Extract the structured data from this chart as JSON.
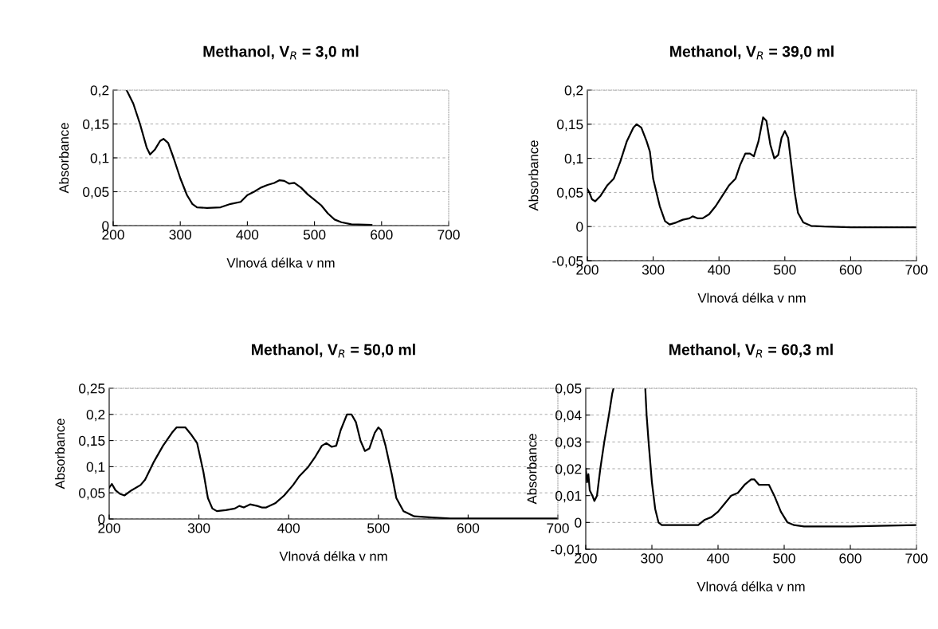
{
  "chart_data": [
    {
      "type": "line",
      "title": "Methanol, V$_{R}$ = 3,0 ml",
      "xlabel": "Vlnová délka v nm",
      "ylabel": "Absorbance",
      "grid": "y",
      "xlim": [
        200,
        700
      ],
      "xticks": [
        200,
        300,
        400,
        500,
        600,
        700
      ],
      "ylim": [
        0,
        0.2
      ],
      "yticks": [
        0,
        {
          "value": 0.05,
          "label": "0,05"
        },
        {
          "value": 0.1,
          "label": "0,1"
        },
        {
          "value": 0.15,
          "label": "0,15"
        },
        {
          "value": 0.2,
          "label": "0,2"
        }
      ],
      "series": [
        {
          "color": "#000000",
          "x": [
            220,
            230,
            240,
            250,
            255,
            262,
            270,
            275,
            282,
            290,
            300,
            310,
            318,
            325,
            340,
            360,
            375,
            390,
            400,
            410,
            420,
            430,
            440,
            448,
            455,
            462,
            470,
            480,
            490,
            500,
            510,
            520,
            530,
            540,
            555,
            585
          ],
          "values": [
            0.2,
            0.18,
            0.15,
            0.115,
            0.105,
            0.112,
            0.125,
            0.128,
            0.122,
            0.1,
            0.07,
            0.045,
            0.032,
            0.027,
            0.026,
            0.027,
            0.032,
            0.035,
            0.045,
            0.05,
            0.056,
            0.06,
            0.063,
            0.067,
            0.066,
            0.062,
            0.063,
            0.056,
            0.046,
            0.038,
            0.03,
            0.018,
            0.009,
            0.005,
            0.002,
            0.001
          ]
        }
      ]
    },
    {
      "type": "line",
      "title": "Methanol, V$_{R}$ = 39,0 ml",
      "xlabel": "Vlnová délka v nm",
      "ylabel": "Absorbance",
      "grid": "y",
      "xlim": [
        200,
        700
      ],
      "xticks": [
        200,
        300,
        400,
        500,
        600,
        700
      ],
      "ylim": [
        -0.05,
        0.2
      ],
      "yticks": [
        {
          "value": -0.05,
          "label": "-0,05"
        },
        0,
        {
          "value": 0.05,
          "label": "0,05"
        },
        {
          "value": 0.1,
          "label": "0,1"
        },
        {
          "value": 0.15,
          "label": "0,15"
        },
        {
          "value": 0.2,
          "label": "0,2"
        }
      ],
      "series": [
        {
          "color": "#000000",
          "x": [
            200,
            203,
            207,
            212,
            220,
            230,
            240,
            250,
            260,
            270,
            275,
            282,
            290,
            295,
            300,
            310,
            318,
            325,
            335,
            345,
            355,
            360,
            368,
            375,
            385,
            395,
            405,
            415,
            425,
            432,
            440,
            447,
            453,
            460,
            467,
            472,
            478,
            484,
            490,
            495,
            500,
            505,
            510,
            515,
            520,
            528,
            540,
            560,
            600,
            700
          ],
          "values": [
            0.055,
            0.05,
            0.04,
            0.037,
            0.045,
            0.06,
            0.07,
            0.095,
            0.125,
            0.145,
            0.15,
            0.145,
            0.125,
            0.11,
            0.07,
            0.03,
            0.008,
            0.003,
            0.006,
            0.01,
            0.012,
            0.015,
            0.012,
            0.012,
            0.018,
            0.03,
            0.045,
            0.06,
            0.07,
            0.09,
            0.107,
            0.107,
            0.103,
            0.125,
            0.16,
            0.155,
            0.12,
            0.1,
            0.105,
            0.13,
            0.14,
            0.13,
            0.09,
            0.05,
            0.02,
            0.006,
            0.001,
            0,
            -0.001,
            -0.001
          ]
        }
      ]
    },
    {
      "type": "line",
      "title": "Methanol, V$_{R}$ = 50,0 ml",
      "xlabel": "Vlnová délka v nm",
      "ylabel": "Absorbance",
      "grid": "y",
      "xlim": [
        200,
        700
      ],
      "xticks": [
        200,
        300,
        400,
        500,
        600,
        700
      ],
      "ylim": [
        0,
        0.25
      ],
      "yticks": [
        0,
        {
          "value": 0.05,
          "label": "0,05"
        },
        {
          "value": 0.1,
          "label": "0,1"
        },
        {
          "value": 0.15,
          "label": "0,15"
        },
        {
          "value": 0.2,
          "label": "0,2"
        },
        {
          "value": 0.25,
          "label": "0,25"
        }
      ],
      "series": [
        {
          "color": "#000000",
          "x": [
            200,
            203,
            207,
            212,
            217,
            225,
            235,
            240,
            250,
            260,
            270,
            275,
            285,
            292,
            298,
            305,
            310,
            315,
            320,
            330,
            340,
            345,
            350,
            357,
            365,
            370,
            375,
            385,
            395,
            405,
            412,
            422,
            430,
            437,
            442,
            448,
            453,
            458,
            465,
            470,
            475,
            480,
            485,
            490,
            496,
            500,
            503,
            508,
            515,
            520,
            528,
            540,
            560,
            580,
            700
          ],
          "values": [
            0.06,
            0.067,
            0.055,
            0.048,
            0.045,
            0.055,
            0.065,
            0.075,
            0.11,
            0.14,
            0.165,
            0.175,
            0.175,
            0.16,
            0.145,
            0.09,
            0.04,
            0.02,
            0.015,
            0.017,
            0.02,
            0.025,
            0.022,
            0.028,
            0.025,
            0.022,
            0.022,
            0.03,
            0.045,
            0.065,
            0.082,
            0.1,
            0.12,
            0.14,
            0.145,
            0.138,
            0.14,
            0.17,
            0.2,
            0.2,
            0.185,
            0.15,
            0.13,
            0.135,
            0.165,
            0.175,
            0.17,
            0.14,
            0.085,
            0.04,
            0.015,
            0.005,
            0.003,
            0.001,
            0.001
          ]
        }
      ]
    },
    {
      "type": "line",
      "title": "Methanol, V$_{R}$ = 60,3 ml",
      "xlabel": "Vlnová délka v nm",
      "ylabel": "Absorbance",
      "grid": "y",
      "xlim": [
        200,
        700
      ],
      "xticks": [
        200,
        300,
        400,
        500,
        600,
        700
      ],
      "ylim": [
        -0.01,
        0.05
      ],
      "yticks": [
        {
          "value": -0.01,
          "label": "-0,01"
        },
        0,
        {
          "value": 0.01,
          "label": "0,01"
        },
        {
          "value": 0.02,
          "label": "0,02"
        },
        {
          "value": 0.03,
          "label": "0,03"
        },
        {
          "value": 0.04,
          "label": "0,04"
        },
        {
          "value": 0.05,
          "label": "0,05"
        }
      ],
      "series": [
        {
          "color": "#000000",
          "x": [
            200,
            202,
            204,
            206,
            210,
            213,
            217,
            222,
            228,
            235,
            240,
            242,
            265,
            290,
            292,
            295,
            300,
            305,
            310,
            315,
            330,
            350,
            370,
            380,
            390,
            400,
            410,
            420,
            430,
            440,
            450,
            455,
            462,
            470,
            477,
            485,
            495,
            505,
            515,
            530,
            600,
            700
          ],
          "values": [
            0.02,
            0.015,
            0.018,
            0.012,
            0.01,
            0.008,
            0.01,
            0.02,
            0.03,
            0.04,
            0.048,
            0.05,
            null,
            0.05,
            0.04,
            0.03,
            0.015,
            0.005,
            0.0,
            -0.001,
            -0.001,
            -0.001,
            -0.001,
            0.001,
            0.002,
            0.004,
            0.007,
            0.01,
            0.011,
            0.014,
            0.016,
            0.016,
            0.014,
            0.014,
            0.014,
            0.01,
            0.004,
            0.0,
            -0.001,
            -0.0015,
            -0.0015,
            -0.001
          ]
        }
      ]
    }
  ]
}
